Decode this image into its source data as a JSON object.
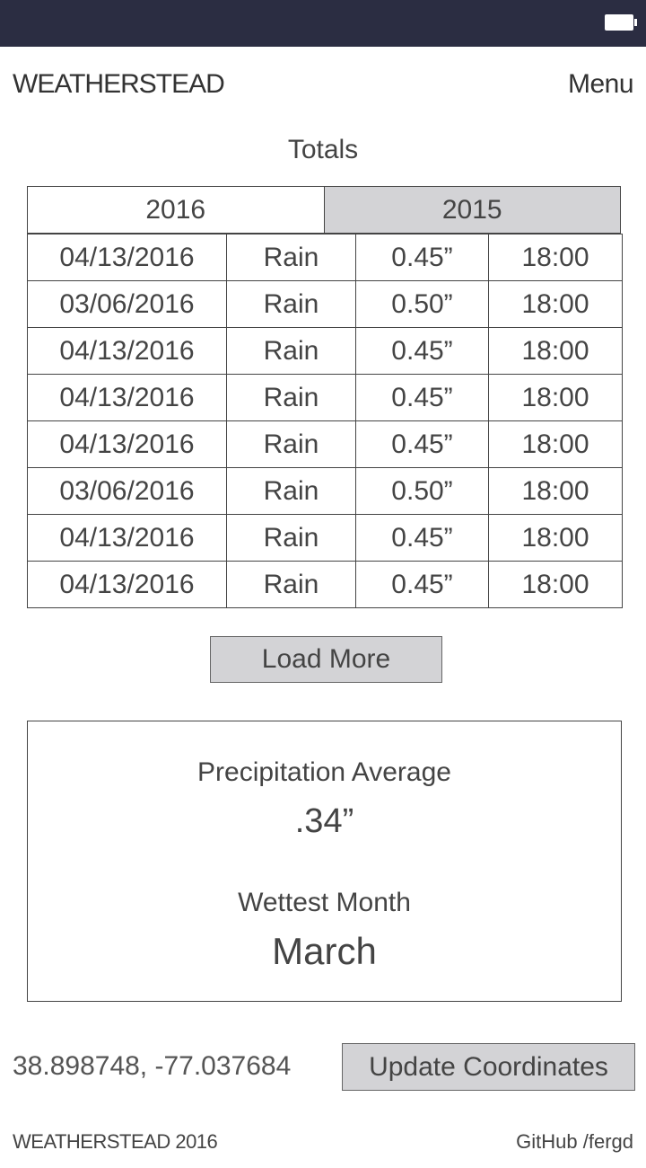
{
  "status_bar": {
    "battery_icon": "battery-icon"
  },
  "header": {
    "brand": "WEATHERSTEAD",
    "menu_label": "Menu"
  },
  "totals": {
    "title": "Totals",
    "tabs": [
      {
        "label": "2016",
        "selected": true
      },
      {
        "label": "2015",
        "selected": false
      }
    ],
    "rows": [
      {
        "date": "04/13/2016",
        "type": "Rain",
        "amount": "0.45”",
        "time": "18:00"
      },
      {
        "date": "03/06/2016",
        "type": "Rain",
        "amount": "0.50”",
        "time": "18:00"
      },
      {
        "date": "04/13/2016",
        "type": "Rain",
        "amount": "0.45”",
        "time": "18:00"
      },
      {
        "date": "04/13/2016",
        "type": "Rain",
        "amount": "0.45”",
        "time": "18:00"
      },
      {
        "date": "04/13/2016",
        "type": "Rain",
        "amount": "0.45”",
        "time": "18:00"
      },
      {
        "date": "03/06/2016",
        "type": "Rain",
        "amount": "0.50”",
        "time": "18:00"
      },
      {
        "date": "04/13/2016",
        "type": "Rain",
        "amount": "0.45”",
        "time": "18:00"
      },
      {
        "date": "04/13/2016",
        "type": "Rain",
        "amount": "0.45”",
        "time": "18:00"
      }
    ],
    "load_more_label": "Load More"
  },
  "stats": {
    "precip_label": "Precipitation Average",
    "precip_value": ".34”",
    "wettest_label": "Wettest Month",
    "wettest_value": "March"
  },
  "location": {
    "coordinates": "38.898748, -77.037684",
    "update_label": "Update Coordinates"
  },
  "footer": {
    "brand": "WEATHERSTEAD 2016",
    "link": "GitHub /fergd"
  },
  "colors": {
    "status_bar": "#2b2d42",
    "button_bg": "#d3d3d6",
    "border": "#444444"
  }
}
